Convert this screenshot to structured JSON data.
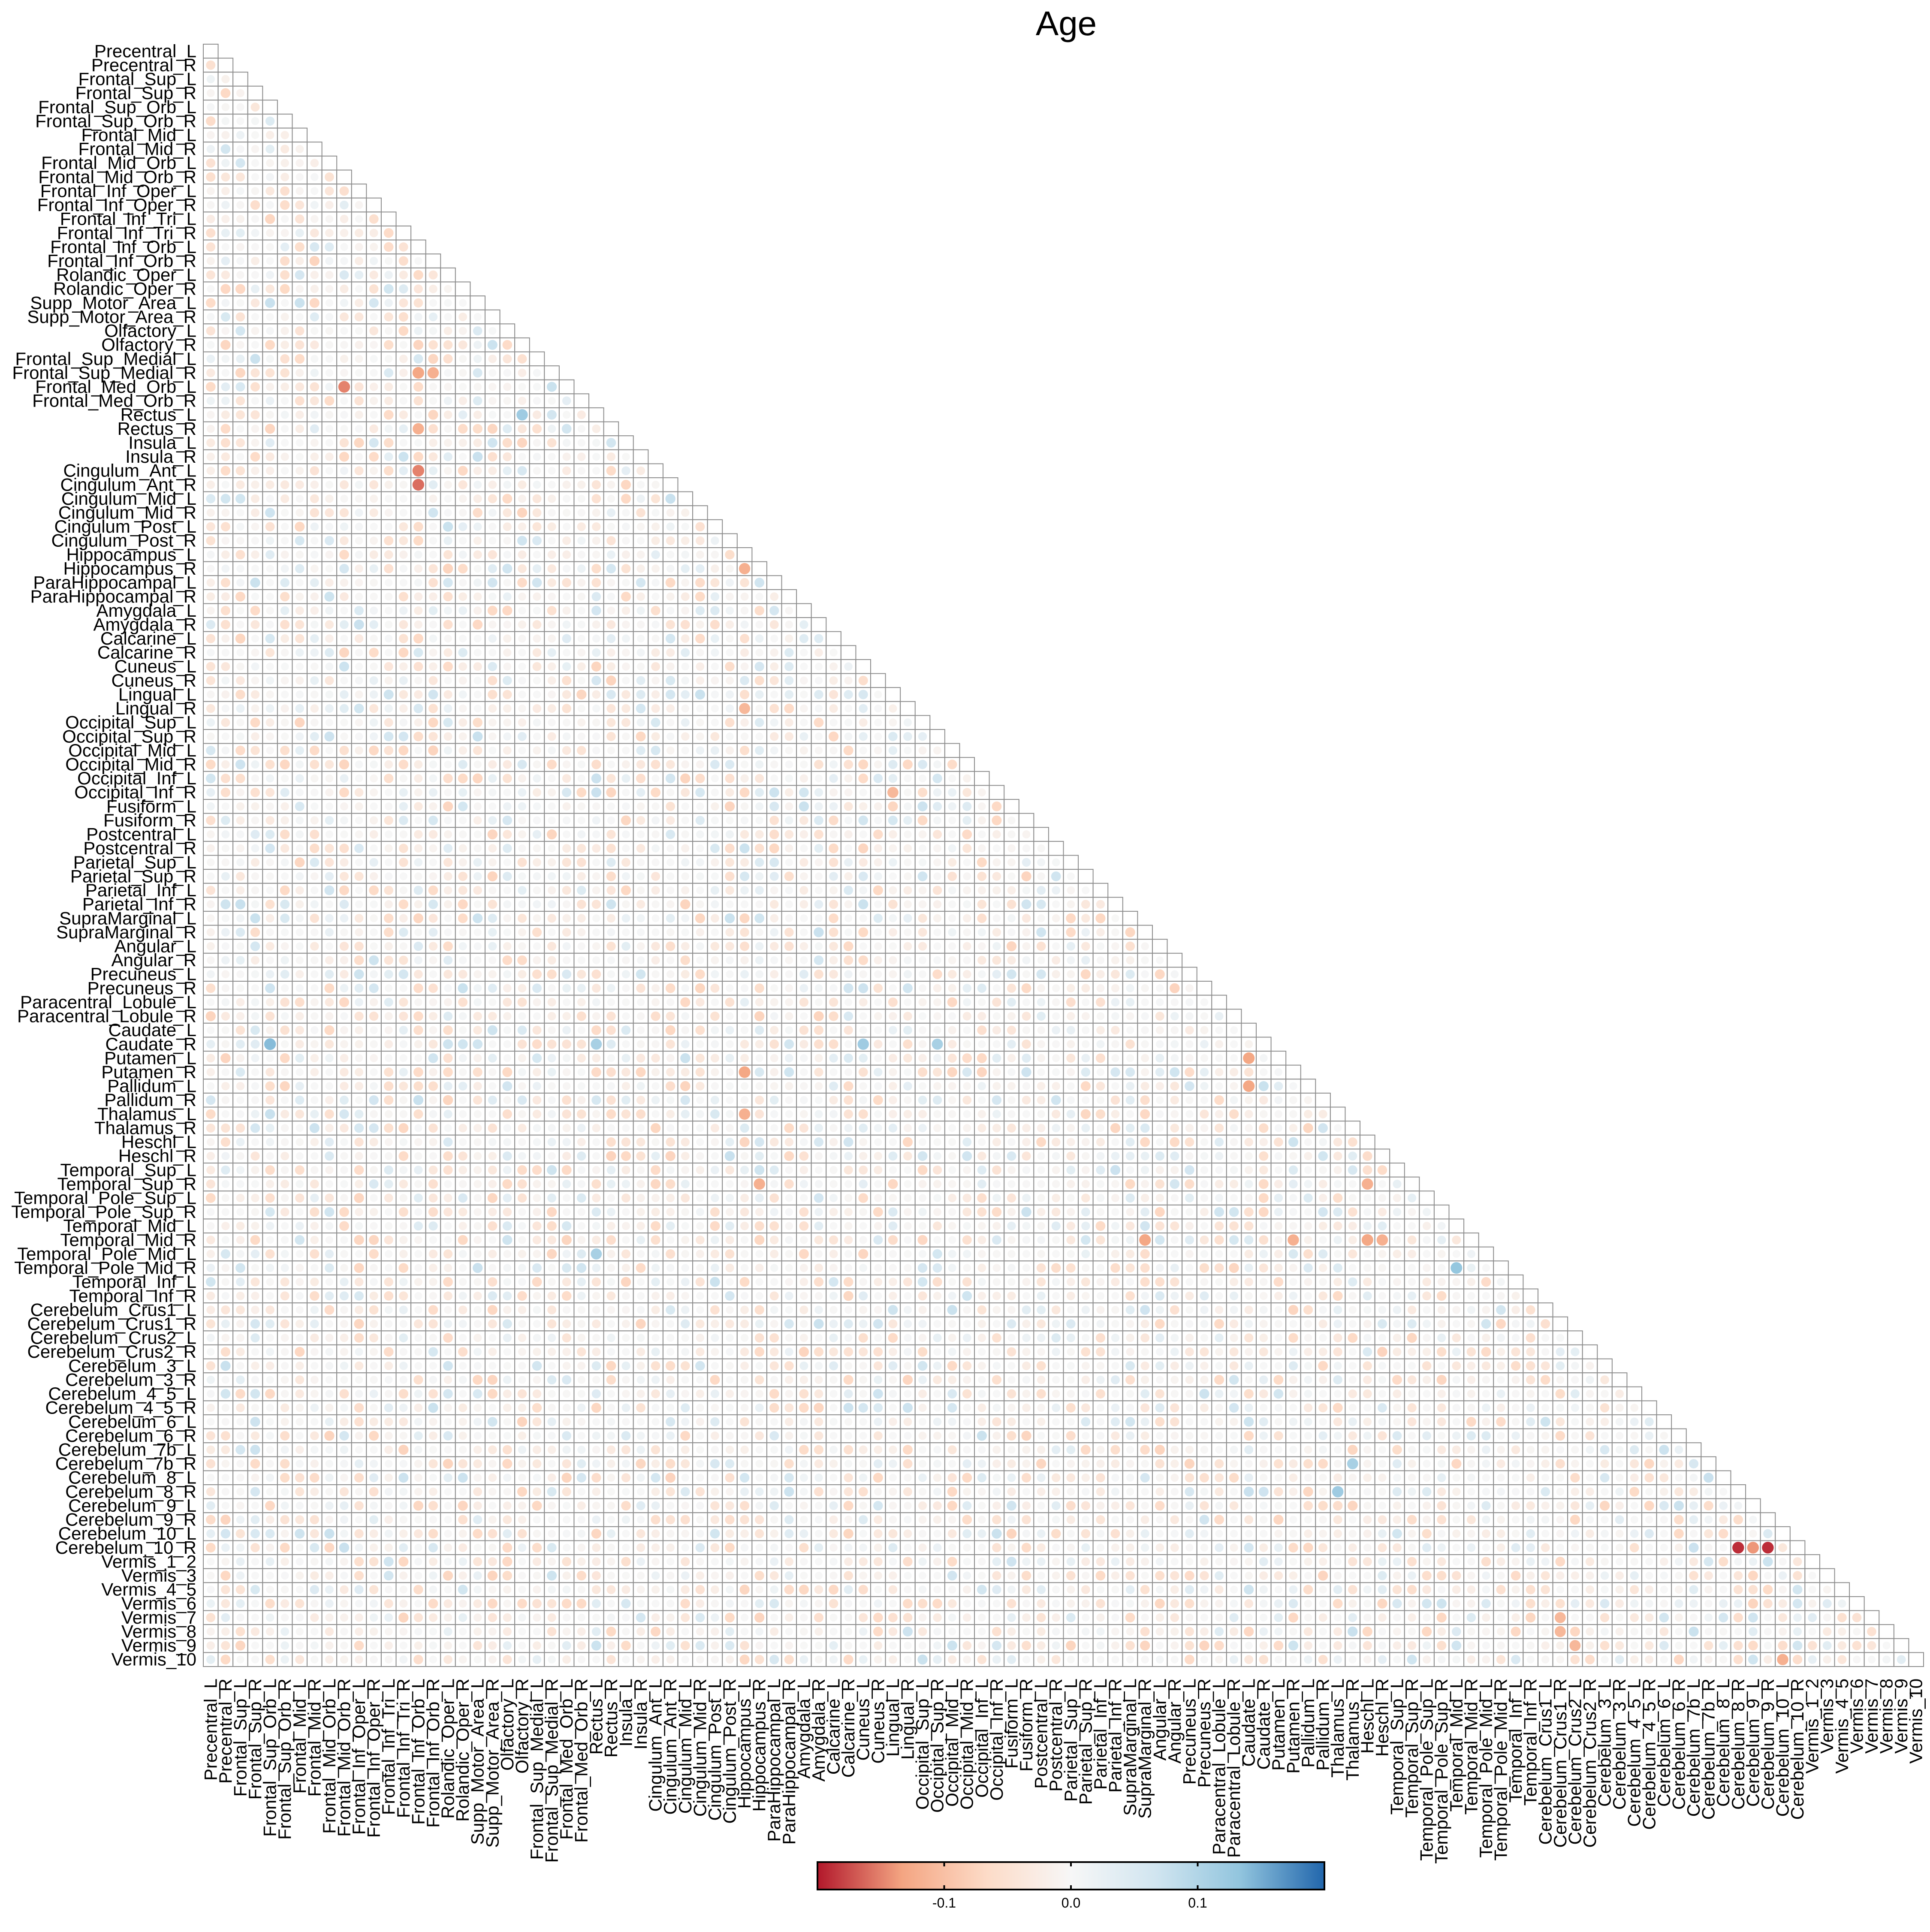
{
  "chart_data": {
    "type": "heatmap",
    "title": "Age",
    "layout": "lower-triangle",
    "regions": [
      "Precentral_L",
      "Precentral_R",
      "Frontal_Sup_L",
      "Frontal_Sup_R",
      "Frontal_Sup_Orb_L",
      "Frontal_Sup_Orb_R",
      "Frontal_Mid_L",
      "Frontal_Mid_R",
      "Frontal_Mid_Orb_L",
      "Frontal_Mid_Orb_R",
      "Frontal_Inf_Oper_L",
      "Frontal_Inf_Oper_R",
      "Frontal_Inf_Tri_L",
      "Frontal_Inf_Tri_R",
      "Frontal_Inf_Orb_L",
      "Frontal_Inf_Orb_R",
      "Rolandic_Oper_L",
      "Rolandic_Oper_R",
      "Supp_Motor_Area_L",
      "Supp_Motor_Area_R",
      "Olfactory_L",
      "Olfactory_R",
      "Frontal_Sup_Medial_L",
      "Frontal_Sup_Medial_R",
      "Frontal_Med_Orb_L",
      "Frontal_Med_Orb_R",
      "Rectus_L",
      "Rectus_R",
      "Insula_L",
      "Insula_R",
      "Cingulum_Ant_L",
      "Cingulum_Ant_R",
      "Cingulum_Mid_L",
      "Cingulum_Mid_R",
      "Cingulum_Post_L",
      "Cingulum_Post_R",
      "Hippocampus_L",
      "Hippocampus_R",
      "ParaHippocampal_L",
      "ParaHippocampal_R",
      "Amygdala_L",
      "Amygdala_R",
      "Calcarine_L",
      "Calcarine_R",
      "Cuneus_L",
      "Cuneus_R",
      "Lingual_L",
      "Lingual_R",
      "Occipital_Sup_L",
      "Occipital_Sup_R",
      "Occipital_Mid_L",
      "Occipital_Mid_R",
      "Occipital_Inf_L",
      "Occipital_Inf_R",
      "Fusiform_L",
      "Fusiform_R",
      "Postcentral_L",
      "Postcentral_R",
      "Parietal_Sup_L",
      "Parietal_Sup_R",
      "Parietal_Inf_L",
      "Parietal_Inf_R",
      "SupraMarginal_L",
      "SupraMarginal_R",
      "Angular_L",
      "Angular_R",
      "Precuneus_L",
      "Precuneus_R",
      "Paracentral_Lobule_L",
      "Paracentral_Lobule_R",
      "Caudate_L",
      "Caudate_R",
      "Putamen_L",
      "Putamen_R",
      "Pallidum_L",
      "Pallidum_R",
      "Thalamus_L",
      "Thalamus_R",
      "Heschl_L",
      "Heschl_R",
      "Temporal_Sup_L",
      "Temporal_Sup_R",
      "Temporal_Pole_Sup_L",
      "Temporal_Pole_Sup_R",
      "Temporal_Mid_L",
      "Temporal_Mid_R",
      "Temporal_Pole_Mid_L",
      "Temporal_Pole_Mid_R",
      "Temporal_Inf_L",
      "Temporal_Inf_R",
      "Cerebelum_Crus1_L",
      "Cerebelum_Crus1_R",
      "Cerebelum_Crus2_L",
      "Cerebelum_Crus2_R",
      "Cerebelum_3_L",
      "Cerebelum_3_R",
      "Cerebelum_4_5_L",
      "Cerebelum_4_5_R",
      "Cerebelum_6_L",
      "Cerebelum_6_R",
      "Cerebelum_7b_L",
      "Cerebelum_7b_R",
      "Cerebelum_8_L",
      "Cerebelum_8_R",
      "Cerebelum_9_L",
      "Cerebelum_9_R",
      "Cerebelum_10_L",
      "Cerebelum_10_R",
      "Vermis_1_2",
      "Vermis_3",
      "Vermis_4_5",
      "Vermis_6",
      "Vermis_7",
      "Vermis_8",
      "Vermis_9",
      "Vermis_10"
    ],
    "value_range": [
      -0.2,
      0.2
    ],
    "highlighted_cells": [
      {
        "row": "Cerebelum_10_R",
        "col": "Cerebelum_8_R",
        "value": -0.19
      },
      {
        "row": "Cerebelum_10_R",
        "col": "Cerebelum_9_R",
        "value": -0.19
      },
      {
        "row": "Cerebelum_10_R",
        "col": "Cerebelum_9_L",
        "value": -0.14
      },
      {
        "row": "Cingulum_Ant_R",
        "col": "Frontal_Inf_Orb_L",
        "value": -0.16
      },
      {
        "row": "Cingulum_Ant_L",
        "col": "Frontal_Inf_Orb_L",
        "value": -0.15
      },
      {
        "row": "Frontal_Med_Orb_L",
        "col": "Frontal_Mid_Orb_R",
        "value": -0.15
      },
      {
        "row": "Frontal_Sup_Medial_R",
        "col": "Frontal_Inf_Orb_L",
        "value": -0.13
      },
      {
        "row": "Frontal_Sup_Medial_R",
        "col": "Frontal_Inf_Orb_R",
        "value": -0.12
      },
      {
        "row": "Rectus_L",
        "col": "Olfactory_R",
        "value": 0.12
      },
      {
        "row": "Rectus_R",
        "col": "Frontal_Inf_Orb_L",
        "value": -0.12
      },
      {
        "row": "Caudate_R",
        "col": "Frontal_Sup_Orb_L",
        "value": 0.14
      },
      {
        "row": "Caudate_R",
        "col": "Cuneus_L",
        "value": 0.12
      },
      {
        "row": "Caudate_R",
        "col": "Occipital_Sup_R",
        "value": 0.11
      },
      {
        "row": "Caudate_R",
        "col": "Rectus_L",
        "value": 0.11
      },
      {
        "row": "Putamen_L",
        "col": "Caudate_L",
        "value": -0.13
      },
      {
        "row": "Pallidum_L",
        "col": "Caudate_L",
        "value": -0.13
      },
      {
        "row": "Putamen_R",
        "col": "Hippocampus_L",
        "value": -0.13
      },
      {
        "row": "Temporal_Mid_R",
        "col": "Heschl_L",
        "value": -0.13
      },
      {
        "row": "Temporal_Mid_R",
        "col": "Heschl_R",
        "value": -0.12
      },
      {
        "row": "Temporal_Mid_R",
        "col": "SupraMarginal_R",
        "value": -0.13
      },
      {
        "row": "Temporal_Mid_R",
        "col": "Putamen_R",
        "value": -0.12
      },
      {
        "row": "Temporal_Pole_Mid_R",
        "col": "Temporal_Mid_L",
        "value": 0.13
      },
      {
        "row": "Temporal_Pole_Mid_L",
        "col": "Rectus_L",
        "value": 0.11
      },
      {
        "row": "Temporal_Sup_R",
        "col": "Heschl_L",
        "value": -0.12
      },
      {
        "row": "Temporal_Sup_R",
        "col": "Hippocampus_R",
        "value": -0.12
      },
      {
        "row": "Thalamus_L",
        "col": "Hippocampus_L",
        "value": -0.12
      },
      {
        "row": "Occipital_Inf_R",
        "col": "Lingual_L",
        "value": -0.11
      },
      {
        "row": "Lingual_R",
        "col": "Hippocampus_L",
        "value": -0.11
      },
      {
        "row": "Hippocampus_R",
        "col": "Hippocampus_L",
        "value": -0.12
      },
      {
        "row": "Cerebelum_8_R",
        "col": "Thalamus_L",
        "value": 0.12
      },
      {
        "row": "Cerebelum_7b_R",
        "col": "Thalamus_R",
        "value": 0.11
      },
      {
        "row": "Vermis_7",
        "col": "Cerebelum_Crus1_R",
        "value": -0.11
      },
      {
        "row": "Vermis_8",
        "col": "Cerebelum_Crus1_R",
        "value": -0.11
      },
      {
        "row": "Vermis_9",
        "col": "Cerebelum_Crus2_L",
        "value": -0.11
      },
      {
        "row": "Vermis_10",
        "col": "Cerebelum_10_L",
        "value": -0.12
      }
    ],
    "colorbar": {
      "ticks": [
        -0.1,
        0.0,
        0.1
      ],
      "tick_labels": [
        "-0.1",
        "0.0",
        "0.1"
      ],
      "colors": [
        "#b2182b",
        "#f4a582",
        "#fddbc7",
        "#f7f7f7",
        "#d1e5f0",
        "#92c5de",
        "#2166ac"
      ]
    },
    "grid": true,
    "legend_position": "bottom"
  }
}
